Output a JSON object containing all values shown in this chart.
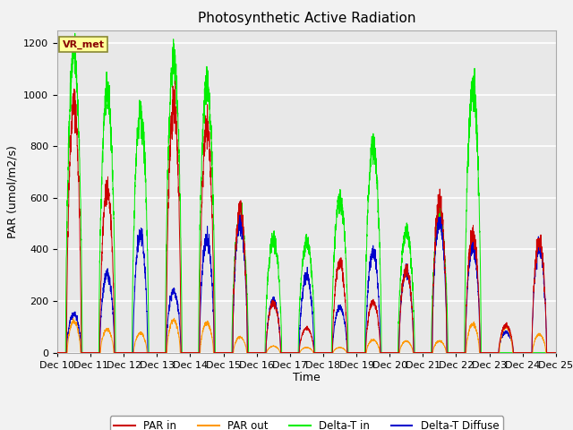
{
  "title": "Photosynthetic Active Radiation",
  "ylabel": "PAR (umol/m2/s)",
  "xlabel": "Time",
  "ylim": [
    0,
    1250
  ],
  "yticks": [
    0,
    200,
    400,
    600,
    800,
    1000,
    1200
  ],
  "xtick_labels": [
    "Dec 10",
    "Dec 11",
    "Dec 12",
    "Dec 13",
    "Dec 14",
    "Dec 15",
    "Dec 16",
    "Dec 17",
    "Dec 18",
    "Dec 19",
    "Dec 20",
    "Dec 21",
    "Dec 22",
    "Dec 23",
    "Dec 24",
    "Dec 25"
  ],
  "label_box": "VR_met",
  "colors": {
    "PAR_in": "#cc0000",
    "PAR_out": "#ff9900",
    "Delta_T_in": "#00ee00",
    "Delta_T_diffuse": "#0000cc"
  },
  "legend_labels": [
    "PAR in",
    "PAR out",
    "Delta-T in",
    "Delta-T Diffuse"
  ],
  "background_color": "#e8e8e8",
  "grid_color": "#ffffff",
  "days": 15,
  "par_in_peaks": [
    970,
    630,
    0,
    960,
    880,
    555,
    195,
    95,
    350,
    195,
    320,
    590,
    460,
    105,
    430
  ],
  "par_out_peaks": [
    120,
    90,
    75,
    125,
    115,
    60,
    25,
    20,
    20,
    50,
    45,
    45,
    110,
    100,
    70
  ],
  "delta_t_in_peaks": [
    1155,
    1000,
    930,
    1135,
    1045,
    520,
    435,
    430,
    600,
    800,
    470,
    530,
    1035,
    0,
    0
  ],
  "delta_t_diffuse_peaks": [
    150,
    305,
    455,
    240,
    440,
    510,
    200,
    300,
    175,
    390,
    320,
    510,
    415,
    80,
    410
  ],
  "title_fontsize": 11,
  "axis_fontsize": 9,
  "tick_fontsize": 8
}
